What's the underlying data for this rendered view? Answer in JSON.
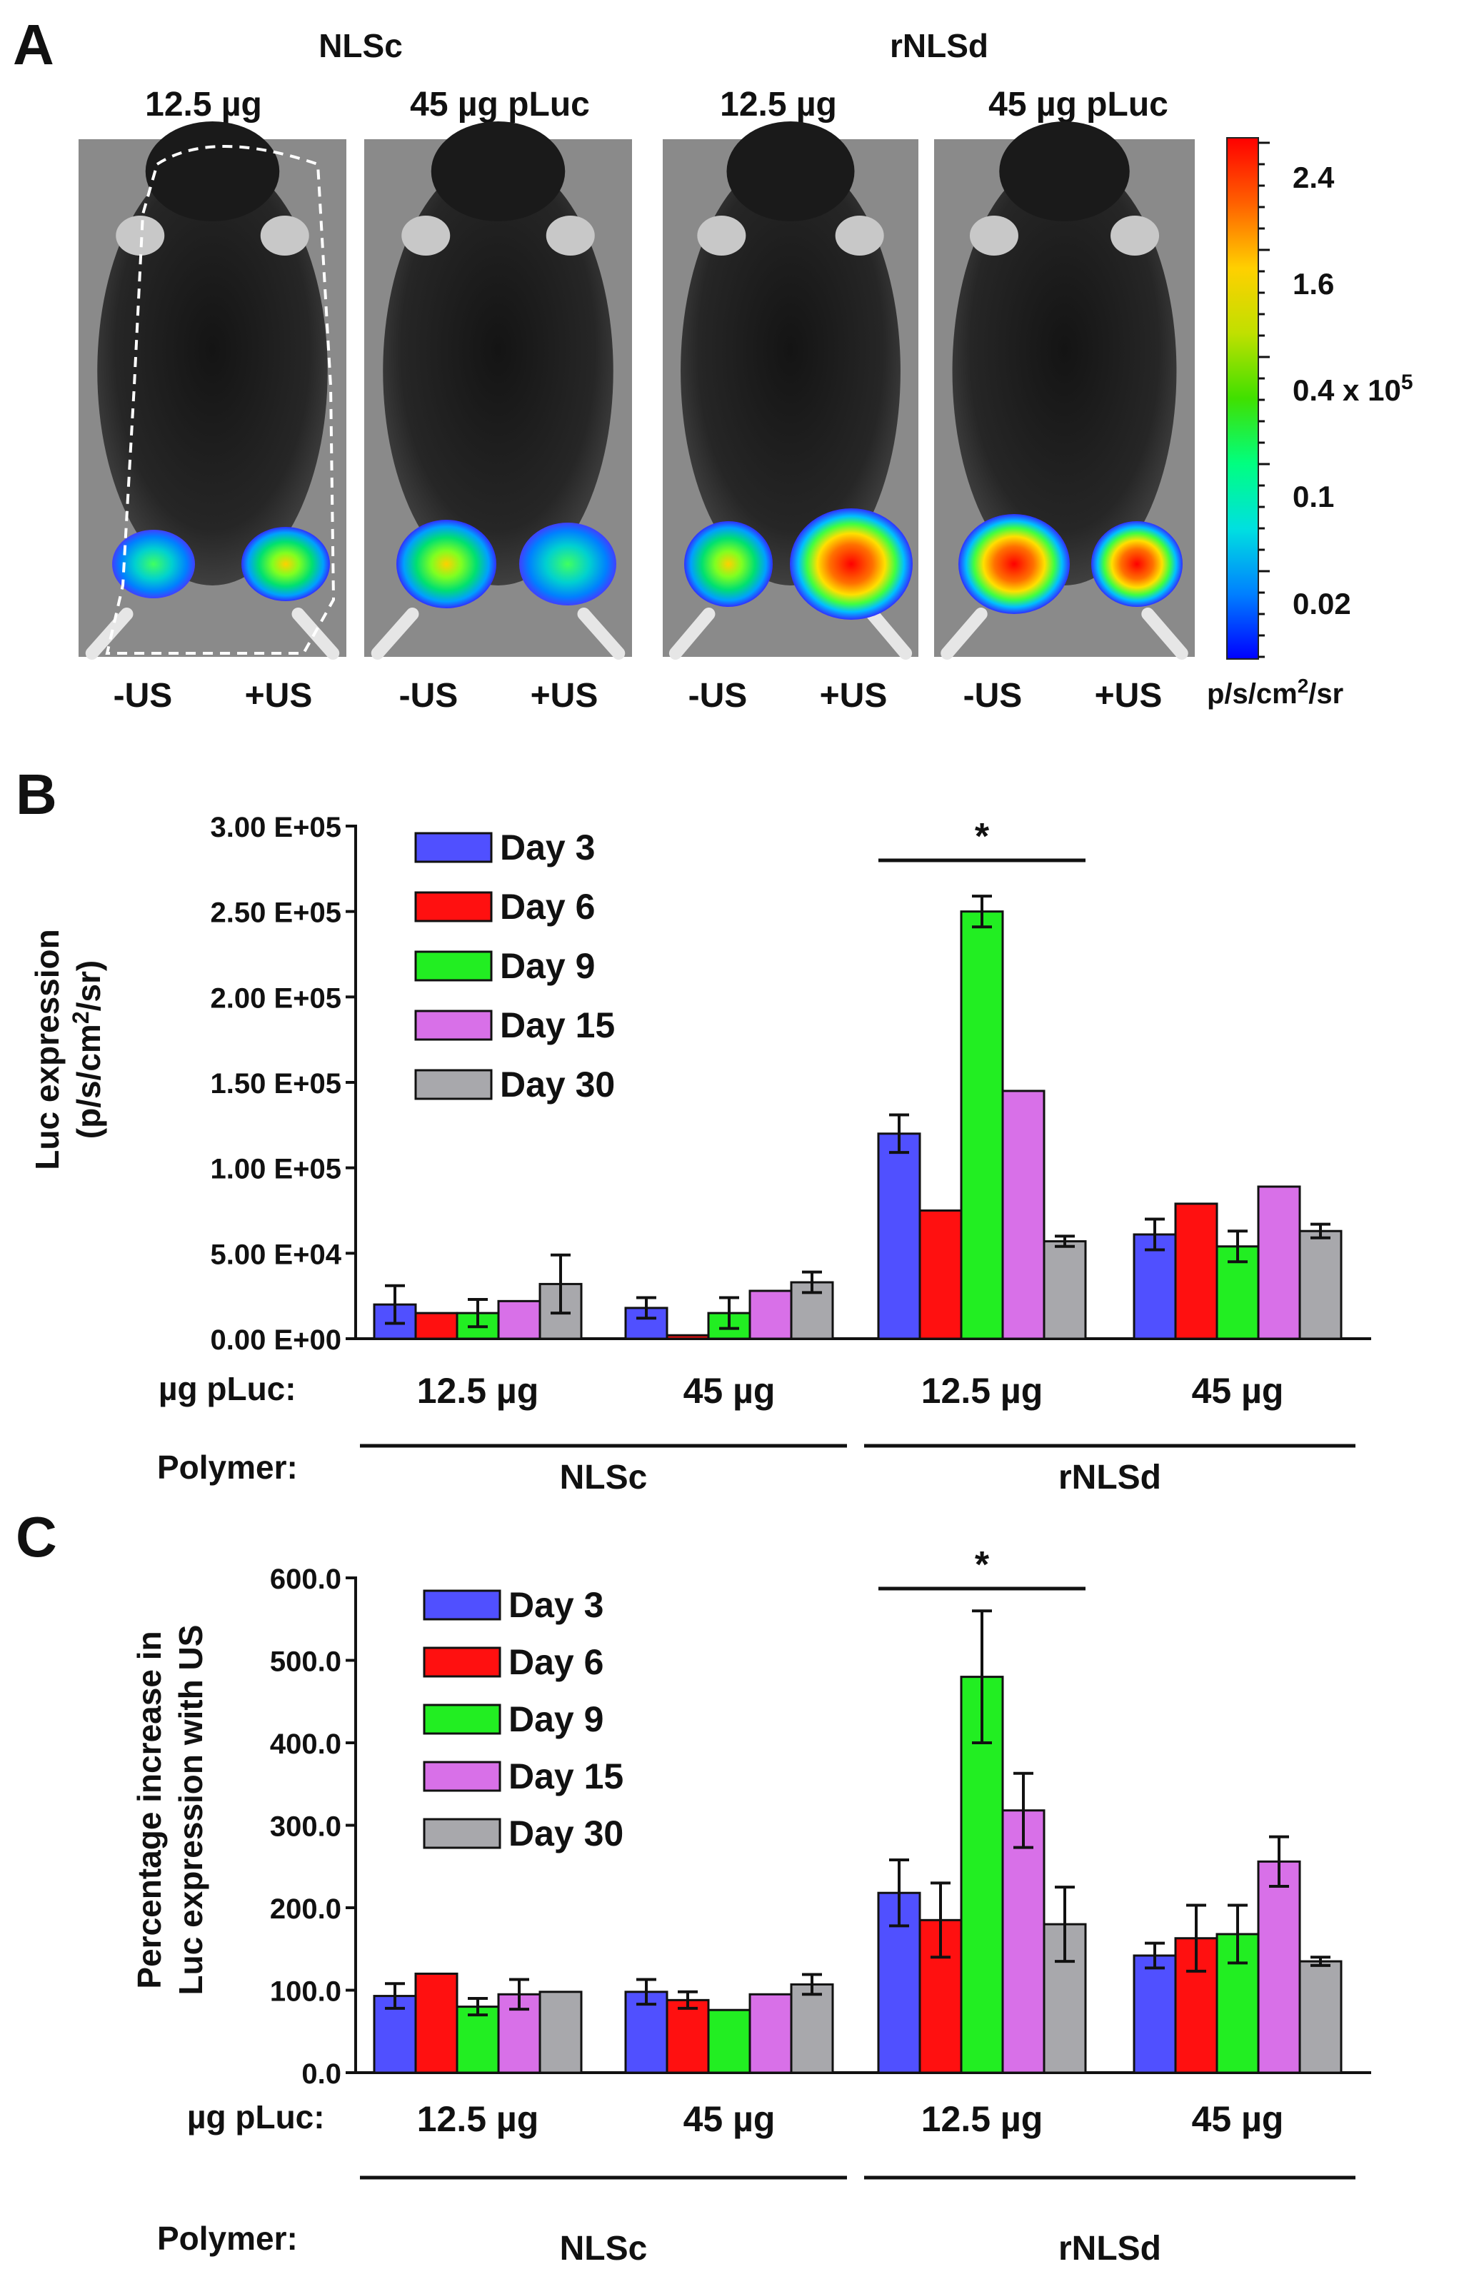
{
  "panelA": {
    "letter": "A",
    "groups": [
      {
        "polymer": "NLSc",
        "doses": [
          "12.5 µg",
          "45 µg pLuc"
        ]
      },
      {
        "polymer": "rNLSd",
        "doses": [
          "12.5 µg",
          "45 µg pLuc"
        ]
      }
    ],
    "conditions": [
      "-US",
      "+US"
    ],
    "colorbar": {
      "ticks": [
        "2.4",
        "1.6",
        "0.4 x 10",
        "0.1",
        "0.02"
      ],
      "exponent": "5",
      "unit_prefix": "p/s/cm",
      "unit_sup": "2",
      "unit_suffix": "/sr",
      "colors": [
        "#0000ff",
        "#0080ff",
        "#00e0e0",
        "#00ff80",
        "#40e000",
        "#c0e000",
        "#ffd000",
        "#ff6000",
        "#ff0000"
      ]
    }
  },
  "series_colors": {
    "Day 3": "#5050ff",
    "Day 6": "#ff1010",
    "Day 9": "#22ee22",
    "Day 15": "#d870e8",
    "Day 30": "#a8a8ac"
  },
  "chart_data": [
    {
      "panel": "B",
      "type": "bar",
      "ylabel_line1": "Luc expression",
      "ylabel_line2_prefix": "(p/s/cm",
      "ylabel_line2_sup": "2",
      "ylabel_line2_suffix": "/sr)",
      "ylim": [
        0,
        300000
      ],
      "yticks": [
        {
          "value": 0,
          "label": "0.00 E+00"
        },
        {
          "value": 50000,
          "label": "5.00 E+04"
        },
        {
          "value": 100000,
          "label": "1.00 E+05"
        },
        {
          "value": 150000,
          "label": "1.50 E+05"
        },
        {
          "value": 200000,
          "label": "2.00 E+05"
        },
        {
          "value": 250000,
          "label": "2.50 E+05"
        },
        {
          "value": 300000,
          "label": "3.00 E+05"
        }
      ],
      "row1_label": "µg pLuc:",
      "row2_label": "Polymer:",
      "categories": [
        "12.5 µg",
        "45 µg",
        "12.5 µg",
        "45 µg"
      ],
      "polymers": [
        {
          "label": "NLSc",
          "span": [
            0,
            1
          ]
        },
        {
          "label": "rNLSd",
          "span": [
            2,
            3
          ]
        }
      ],
      "significance": {
        "label": "*",
        "group": 2
      },
      "series": [
        {
          "name": "Day 3",
          "values": [
            20000,
            18000,
            120000,
            61000
          ],
          "errors": [
            11000,
            6000,
            11000,
            9000
          ]
        },
        {
          "name": "Day 6",
          "values": [
            15000,
            2000,
            75000,
            79000
          ],
          "errors": [
            0,
            0,
            0,
            0
          ]
        },
        {
          "name": "Day 9",
          "values": [
            15000,
            15000,
            250000,
            54000
          ],
          "errors": [
            8000,
            9000,
            9000,
            9000
          ]
        },
        {
          "name": "Day 15",
          "values": [
            22000,
            28000,
            145000,
            89000
          ],
          "errors": [
            0,
            0,
            0,
            0
          ]
        },
        {
          "name": "Day 30",
          "values": [
            32000,
            33000,
            57000,
            63000
          ],
          "errors": [
            17000,
            6000,
            3000,
            4000
          ]
        }
      ]
    },
    {
      "panel": "C",
      "type": "bar",
      "ylabel_line1": "Percentage increase in",
      "ylabel_line2_prefix": "Luc expression with US",
      "ylabel_line2_sup": "",
      "ylabel_line2_suffix": "",
      "ylim": [
        0,
        600
      ],
      "yticks": [
        {
          "value": 0,
          "label": "0.0"
        },
        {
          "value": 100,
          "label": "100.0"
        },
        {
          "value": 200,
          "label": "200.0"
        },
        {
          "value": 300,
          "label": "300.0"
        },
        {
          "value": 400,
          "label": "400.0"
        },
        {
          "value": 500,
          "label": "500.0"
        },
        {
          "value": 600,
          "label": "600.0"
        }
      ],
      "row1_label": "µg pLuc:",
      "row2_label": "Polymer:",
      "categories": [
        "12.5 µg",
        "45 µg",
        "12.5 µg",
        "45 µg"
      ],
      "polymers": [
        {
          "label": "NLSc",
          "span": [
            0,
            1
          ]
        },
        {
          "label": "rNLSd",
          "span": [
            2,
            3
          ]
        }
      ],
      "significance": {
        "label": "*",
        "group": 2
      },
      "series": [
        {
          "name": "Day 3",
          "values": [
            93,
            98,
            218,
            142
          ],
          "errors": [
            15,
            15,
            40,
            15
          ]
        },
        {
          "name": "Day 6",
          "values": [
            120,
            88,
            185,
            163
          ],
          "errors": [
            0,
            10,
            45,
            40
          ]
        },
        {
          "name": "Day 9",
          "values": [
            80,
            76,
            480,
            168
          ],
          "errors": [
            10,
            0,
            80,
            35
          ]
        },
        {
          "name": "Day 15",
          "values": [
            95,
            95,
            318,
            256
          ],
          "errors": [
            18,
            0,
            45,
            30
          ]
        },
        {
          "name": "Day 30",
          "values": [
            98,
            107,
            180,
            135
          ],
          "errors": [
            0,
            12,
            45,
            5
          ]
        }
      ]
    }
  ]
}
